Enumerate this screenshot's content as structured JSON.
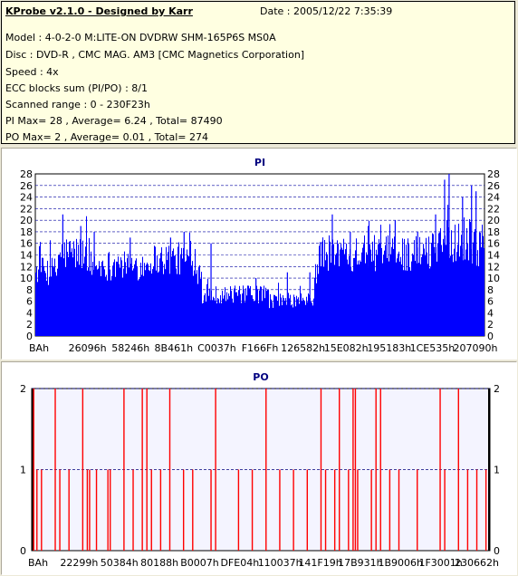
{
  "info": {
    "title": "KProbe v2.1.0 - Designed by Karr",
    "date": "Date : 2005/12/22 7:35:39",
    "model": "Model : 4-0-2-0 M:LITE-ON DVDRW SHM-165P6S MS0A",
    "disc": "Disc : DVD-R , CMC MAG. AM3 [CMC Magnetics Corporation]",
    "speed": "Speed : 4x",
    "ecc": "ECC blocks sum (PI/PO) : 8/1",
    "range": "Scanned range : 0 - 230F23h",
    "pi": "PI Max= 28 , Average= 6.24 , Total= 87490",
    "po": "PO Max= 2 , Average= 0.01 , Total= 274"
  },
  "chart_data": [
    {
      "type": "bar",
      "title": "PI",
      "ylim": [
        0,
        28
      ],
      "yticks": [
        0,
        2,
        4,
        6,
        8,
        10,
        12,
        14,
        16,
        18,
        20,
        22,
        24,
        26,
        28
      ],
      "xticks": [
        "BAh",
        "26096h",
        "58246h",
        "8B461h",
        "C0037h",
        "F166Fh",
        "126582h",
        "15E082h",
        "195183h",
        "1CE535h",
        "207090h"
      ],
      "grid": true,
      "colors": {
        "bar": "#0000ff",
        "bg": "#ffffff",
        "grid": "#0000a0",
        "title": "#000080"
      },
      "segments": [
        {
          "from": 0.0,
          "to": 0.05,
          "level": 11
        },
        {
          "from": 0.05,
          "to": 0.12,
          "level": 14
        },
        {
          "from": 0.12,
          "to": 0.25,
          "level": 12
        },
        {
          "from": 0.25,
          "to": 0.36,
          "level": 13
        },
        {
          "from": 0.36,
          "to": 0.37,
          "level": 11
        },
        {
          "from": 0.37,
          "to": 0.52,
          "level": 7
        },
        {
          "from": 0.52,
          "to": 0.62,
          "level": 6
        },
        {
          "from": 0.62,
          "to": 0.63,
          "level": 11
        },
        {
          "from": 0.63,
          "to": 0.88,
          "level": 14
        },
        {
          "from": 0.88,
          "to": 0.96,
          "level": 16
        },
        {
          "from": 0.96,
          "to": 1.0,
          "level": 15
        }
      ],
      "peaks": [
        {
          "pos": 0.06,
          "value": 21
        },
        {
          "pos": 0.1,
          "value": 19
        },
        {
          "pos": 0.13,
          "value": 18
        },
        {
          "pos": 0.21,
          "value": 17
        },
        {
          "pos": 0.3,
          "value": 17
        },
        {
          "pos": 0.33,
          "value": 18
        },
        {
          "pos": 0.39,
          "value": 16
        },
        {
          "pos": 0.49,
          "value": 10
        },
        {
          "pos": 0.56,
          "value": 11
        },
        {
          "pos": 0.61,
          "value": 11
        },
        {
          "pos": 0.66,
          "value": 21
        },
        {
          "pos": 0.7,
          "value": 18
        },
        {
          "pos": 0.74,
          "value": 19
        },
        {
          "pos": 0.8,
          "value": 20
        },
        {
          "pos": 0.85,
          "value": 18
        },
        {
          "pos": 0.89,
          "value": 21
        },
        {
          "pos": 0.91,
          "value": 27
        },
        {
          "pos": 0.92,
          "value": 28
        },
        {
          "pos": 0.95,
          "value": 24
        },
        {
          "pos": 0.97,
          "value": 26
        },
        {
          "pos": 0.98,
          "value": 25
        }
      ]
    },
    {
      "type": "bar",
      "title": "PO",
      "ylim": [
        0,
        2
      ],
      "yticks": [
        0,
        1,
        2
      ],
      "xticks": [
        "BAh",
        "22299h",
        "50384h",
        "80188h",
        "B0007h",
        "DFE04h",
        "110037h",
        "141F19h",
        "17B931h",
        "1B9006h",
        "1F3001h",
        "230662h"
      ],
      "grid": true,
      "colors": {
        "bar": "#ff0000",
        "bg": "#f4f4ff",
        "grid": "#000080",
        "title": "#000080"
      },
      "spikes": [
        {
          "pos": 0.003,
          "value": 2
        },
        {
          "pos": 0.01,
          "value": 1
        },
        {
          "pos": 0.02,
          "value": 1
        },
        {
          "pos": 0.05,
          "value": 2
        },
        {
          "pos": 0.06,
          "value": 1
        },
        {
          "pos": 0.08,
          "value": 1
        },
        {
          "pos": 0.11,
          "value": 2
        },
        {
          "pos": 0.12,
          "value": 1
        },
        {
          "pos": 0.125,
          "value": 1
        },
        {
          "pos": 0.14,
          "value": 1
        },
        {
          "pos": 0.165,
          "value": 1
        },
        {
          "pos": 0.17,
          "value": 1
        },
        {
          "pos": 0.2,
          "value": 2
        },
        {
          "pos": 0.22,
          "value": 1
        },
        {
          "pos": 0.24,
          "value": 2
        },
        {
          "pos": 0.25,
          "value": 2
        },
        {
          "pos": 0.26,
          "value": 1
        },
        {
          "pos": 0.28,
          "value": 1
        },
        {
          "pos": 0.3,
          "value": 2
        },
        {
          "pos": 0.33,
          "value": 1
        },
        {
          "pos": 0.35,
          "value": 1
        },
        {
          "pos": 0.39,
          "value": 1
        },
        {
          "pos": 0.4,
          "value": 2
        },
        {
          "pos": 0.45,
          "value": 1
        },
        {
          "pos": 0.48,
          "value": 1
        },
        {
          "pos": 0.51,
          "value": 2
        },
        {
          "pos": 0.54,
          "value": 1
        },
        {
          "pos": 0.57,
          "value": 1
        },
        {
          "pos": 0.6,
          "value": 1
        },
        {
          "pos": 0.63,
          "value": 2
        },
        {
          "pos": 0.64,
          "value": 1
        },
        {
          "pos": 0.66,
          "value": 1
        },
        {
          "pos": 0.67,
          "value": 2
        },
        {
          "pos": 0.69,
          "value": 1
        },
        {
          "pos": 0.7,
          "value": 2
        },
        {
          "pos": 0.705,
          "value": 2
        },
        {
          "pos": 0.71,
          "value": 1
        },
        {
          "pos": 0.74,
          "value": 1
        },
        {
          "pos": 0.75,
          "value": 2
        },
        {
          "pos": 0.76,
          "value": 2
        },
        {
          "pos": 0.78,
          "value": 1
        },
        {
          "pos": 0.8,
          "value": 1
        },
        {
          "pos": 0.84,
          "value": 1
        },
        {
          "pos": 0.89,
          "value": 2
        },
        {
          "pos": 0.9,
          "value": 1
        },
        {
          "pos": 0.93,
          "value": 2
        },
        {
          "pos": 0.95,
          "value": 1
        },
        {
          "pos": 0.97,
          "value": 1
        },
        {
          "pos": 0.99,
          "value": 1
        }
      ]
    }
  ]
}
